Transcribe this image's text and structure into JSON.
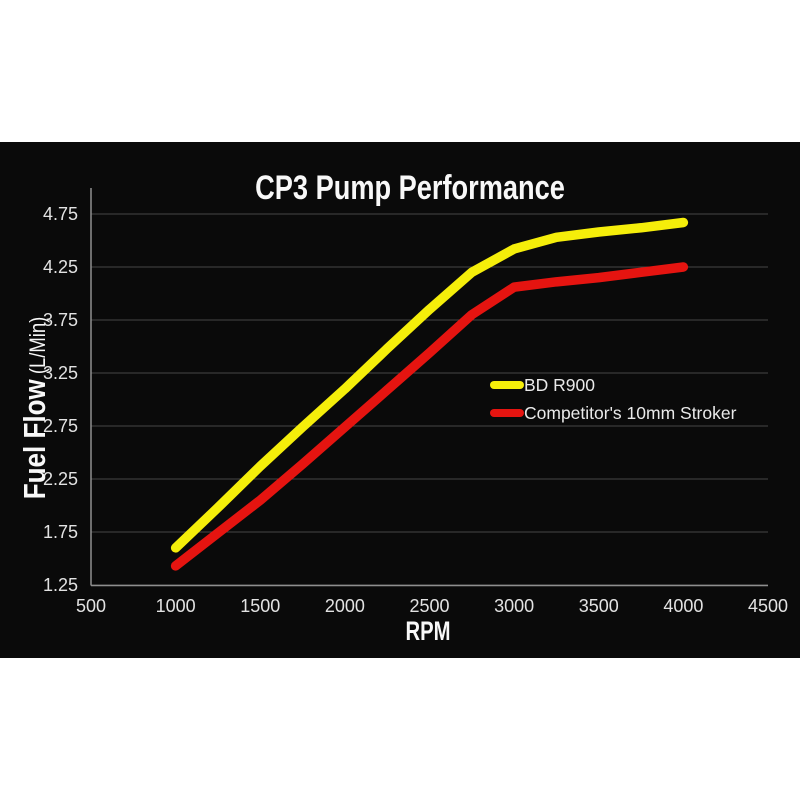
{
  "colors": {
    "page_background": "#ffffff",
    "panel_background": "#0a0a0a",
    "gridline": "#474747",
    "axis_line": "#8f8f8f",
    "tick_text": "#e2e2e2",
    "title_text": "#f8f8f8",
    "legend_text": "#eaeaea",
    "series_yellow": "#f5ee0a",
    "series_red": "#e51410"
  },
  "chart_data": {
    "type": "line",
    "title": "CP3 Pump Performance",
    "xlabel": "RPM",
    "ylabel": "Fuel Flow",
    "ylabel_units": " (L/Min)",
    "xlim": [
      500,
      4500
    ],
    "ylim": [
      1.25,
      4.75
    ],
    "x_ticks": [
      500,
      1000,
      1500,
      2000,
      2500,
      3000,
      3500,
      4000,
      4500
    ],
    "y_ticks": [
      4.75,
      4.25,
      3.75,
      3.25,
      2.75,
      2.25,
      1.75,
      1.25
    ],
    "grid": true,
    "legend_position": "middle-right",
    "background": "black",
    "x": [
      1000,
      1250,
      1500,
      1750,
      2000,
      2250,
      2500,
      2750,
      3000,
      3250,
      3500,
      3750,
      4000
    ],
    "series": [
      {
        "name": "BD R900",
        "color": "#f5ee0a",
        "values": [
          1.6,
          1.98,
          2.37,
          2.74,
          3.1,
          3.48,
          3.85,
          4.2,
          4.42,
          4.53,
          4.58,
          4.62,
          4.67
        ]
      },
      {
        "name": "Competitor's 10mm Stroker",
        "color": "#e51410",
        "values": [
          1.43,
          1.74,
          2.05,
          2.39,
          2.74,
          3.09,
          3.44,
          3.8,
          4.06,
          4.11,
          4.15,
          4.2,
          4.25
        ]
      }
    ]
  }
}
